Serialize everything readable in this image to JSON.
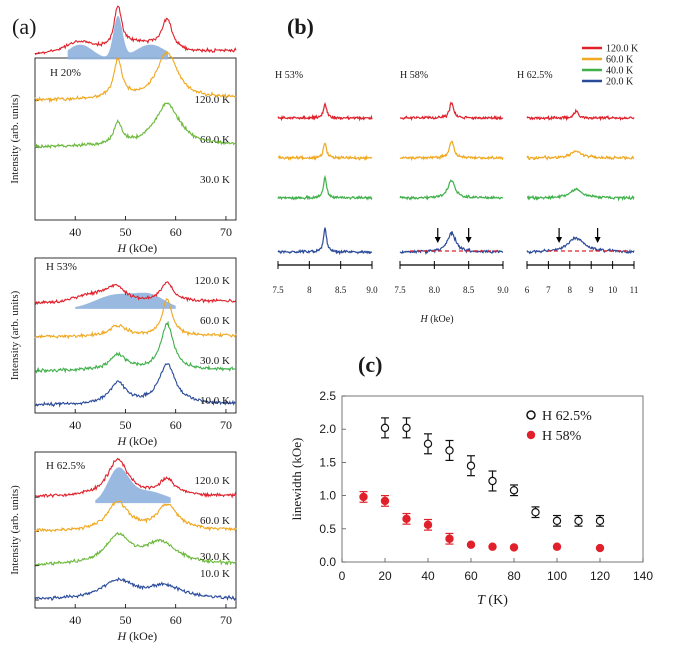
{
  "figure": {
    "panel_a_label": "(a)",
    "panel_b_label": "(b)",
    "panel_c_label": "(c)"
  },
  "colors": {
    "t120": "#e0202a",
    "t60": "#f0a820",
    "t40": "#3fb04a",
    "t30": "#6ab83a",
    "t20": "#2a4a9a",
    "t10": "#2a4a9a",
    "fill": "#8fb1dd",
    "dash": "#e0202a",
    "open_marker": "#111111",
    "filled_marker": "#e0202a"
  },
  "chart_data": [
    {
      "type": "line",
      "panel": "a-top",
      "title": "H 20%",
      "ylabel": "Intensity (arb. units)",
      "xlabel_var": "H",
      "xlabel_unit": "(kOe)",
      "xlim": [
        32,
        72
      ],
      "xticks": [
        40,
        50,
        60,
        70
      ],
      "series": [
        {
          "name": "120.0 K",
          "color_key": "t120",
          "offset": 3,
          "base": 0.3,
          "peaks": [
            [
              48.5,
              1.0,
              0.9
            ],
            [
              58.3,
              0.7,
              1.2
            ]
          ],
          "bumps": [
            [
              41,
              0.25,
              3
            ],
            [
              53,
              0.2,
              4
            ]
          ]
        },
        {
          "name": "60.0 K",
          "color_key": "t60",
          "offset": 2,
          "base": 0.25,
          "peaks": [
            [
              48.5,
              0.9,
              1.0
            ],
            [
              58.3,
              1.1,
              2.5
            ]
          ],
          "bumps": []
        },
        {
          "name": "30.0 K",
          "color_key": "t30",
          "offset": 1,
          "base": 0.2,
          "peaks": [
            [
              48.5,
              0.5,
              1.0
            ],
            [
              58.3,
              1.0,
              3.0
            ]
          ],
          "bumps": []
        }
      ],
      "fit_shade": {
        "from": 38.5,
        "to": 58.5,
        "peaks": [
          [
            48.5,
            1.0,
            0.9
          ],
          [
            41,
            0.35,
            2.5
          ],
          [
            55,
            0.35,
            3
          ]
        ]
      }
    },
    {
      "type": "line",
      "panel": "a-mid",
      "title": "H 53%",
      "ylabel": "Intensity (arb. units)",
      "xlabel_var": "H",
      "xlabel_unit": "(kOe)",
      "xlim": [
        32,
        72
      ],
      "xticks": [
        40,
        50,
        60,
        70
      ],
      "series": [
        {
          "name": "120.0 K",
          "color_key": "t120",
          "offset": 3,
          "base": 0.25,
          "peaks": [
            [
              48,
              0.5,
              2.5
            ],
            [
              58.3,
              0.6,
              1.5
            ]
          ],
          "bumps": [
            [
              43,
              0.2,
              3
            ]
          ]
        },
        {
          "name": "60.0 K",
          "color_key": "t60",
          "offset": 2,
          "base": 0.2,
          "peaks": [
            [
              48.5,
              0.35,
              2.0
            ],
            [
              58.3,
              1.2,
              1.2
            ]
          ],
          "bumps": []
        },
        {
          "name": "30.0 K",
          "color_key": "t40",
          "offset": 1,
          "base": 0.2,
          "peaks": [
            [
              48.5,
              0.5,
              2.0
            ],
            [
              58.3,
              1.5,
              1.5
            ]
          ],
          "bumps": []
        },
        {
          "name": "10.0 K",
          "color_key": "t10",
          "offset": 0,
          "base": 0.15,
          "peaks": [
            [
              48.5,
              0.7,
              2.0
            ],
            [
              58.3,
              1.3,
              2.0
            ]
          ],
          "bumps": []
        }
      ],
      "fit_shade": {
        "from": 40,
        "to": 60,
        "peaks": [
          [
            48,
            0.45,
            4
          ],
          [
            55,
            0.4,
            3
          ]
        ]
      }
    },
    {
      "type": "line",
      "panel": "a-bot",
      "title": "H 62.5%",
      "ylabel": "Intensity (arb. units)",
      "xlabel_var": "H",
      "xlabel_unit": "(kOe)",
      "xlim": [
        32,
        72
      ],
      "xticks": [
        40,
        50,
        60,
        70
      ],
      "series": [
        {
          "name": "120.0 K",
          "color_key": "t120",
          "offset": 3,
          "base": 0.2,
          "peaks": [
            [
              48.5,
              1.2,
              2.5
            ],
            [
              58.3,
              0.5,
              2.0
            ]
          ],
          "bumps": []
        },
        {
          "name": "60.0 K",
          "color_key": "t60",
          "offset": 2,
          "base": 0.2,
          "peaks": [
            [
              48.5,
              0.9,
              2.5
            ],
            [
              58.3,
              0.8,
              2.5
            ]
          ],
          "bumps": []
        },
        {
          "name": "30.0 K",
          "color_key": "t30",
          "offset": 1,
          "base": 0.15,
          "peaks": [
            [
              48.5,
              0.9,
              3.0
            ],
            [
              57,
              0.7,
              4.0
            ]
          ],
          "bumps": []
        },
        {
          "name": "10.0 K",
          "color_key": "t10",
          "offset": 0,
          "base": 0.1,
          "peaks": [
            [
              48.5,
              0.6,
              4.0
            ],
            [
              58,
              0.4,
              4.0
            ]
          ],
          "bumps": []
        }
      ],
      "fit_shade": {
        "from": 44,
        "to": 59,
        "peaks": [
          [
            48.5,
            1.0,
            2.0
          ],
          [
            54,
            0.4,
            4
          ]
        ]
      }
    },
    {
      "type": "line",
      "panel": "b-53",
      "title": "H 53%",
      "xlim": [
        7.5,
        9.0
      ],
      "xticks": [
        7.5,
        8.0,
        8.5,
        9.0
      ],
      "xticklabels": [
        "7.5",
        "8",
        "8.5",
        "9.0"
      ],
      "series": [
        {
          "name": "120.0 K",
          "color_key": "t120",
          "offset": 3,
          "peak": [
            8.25,
            1.0,
            0.03
          ]
        },
        {
          "name": "60.0 K",
          "color_key": "t60",
          "offset": 2,
          "peak": [
            8.25,
            1.1,
            0.03
          ]
        },
        {
          "name": "40.0 K",
          "color_key": "t40",
          "offset": 1,
          "peak": [
            8.25,
            1.5,
            0.03
          ]
        },
        {
          "name": "20.0 K",
          "color_key": "t20",
          "offset": 0,
          "peak": [
            8.25,
            1.7,
            0.03
          ]
        }
      ]
    },
    {
      "type": "line",
      "panel": "b-58",
      "title": "H 58%",
      "xlim": [
        7.5,
        9.0
      ],
      "xticks": [
        7.5,
        8.0,
        8.5,
        9.0
      ],
      "xticklabels": [
        "7.5",
        "8.0",
        "8.5",
        "9.0"
      ],
      "arrows": [
        8.05,
        8.5
      ],
      "series": [
        {
          "name": "120.0 K",
          "color_key": "t120",
          "offset": 3,
          "peak": [
            8.25,
            1.1,
            0.035
          ]
        },
        {
          "name": "60.0 K",
          "color_key": "t60",
          "offset": 2,
          "peak": [
            8.25,
            1.2,
            0.04
          ]
        },
        {
          "name": "40.0 K",
          "color_key": "t40",
          "offset": 1,
          "peak": [
            8.25,
            1.3,
            0.06
          ]
        },
        {
          "name": "20.0 K",
          "color_key": "t20",
          "offset": 0,
          "peak": [
            8.25,
            1.4,
            0.07
          ]
        }
      ]
    },
    {
      "type": "line",
      "panel": "b-62",
      "title": "H 62.5%",
      "xlim": [
        6,
        11
      ],
      "xticks": [
        6,
        7,
        8,
        9,
        10,
        11
      ],
      "xticklabels": [
        "6",
        "7",
        "8",
        "9",
        "10",
        "11"
      ],
      "arrows": [
        7.5,
        9.3
      ],
      "series": [
        {
          "name": "120.0 K",
          "color_key": "t120",
          "offset": 3,
          "peak": [
            8.3,
            0.5,
            0.12
          ]
        },
        {
          "name": "60.0 K",
          "color_key": "t60",
          "offset": 2,
          "peak": [
            8.3,
            0.5,
            0.3
          ]
        },
        {
          "name": "40.0 K",
          "color_key": "t40",
          "offset": 1,
          "peak": [
            8.3,
            0.6,
            0.35
          ]
        },
        {
          "name": "20.0 K",
          "color_key": "t20",
          "offset": 0,
          "peak": [
            8.3,
            1.0,
            0.45
          ]
        }
      ]
    },
    {
      "type": "scatter",
      "panel": "c",
      "xlabel_var": "T",
      "xlabel_unit": "(K)",
      "ylabel": "linewidth (kOe)",
      "xlim": [
        0,
        140
      ],
      "ylim": [
        0,
        2.5
      ],
      "xticks": [
        0,
        20,
        40,
        60,
        80,
        100,
        120,
        140
      ],
      "yticks": [
        0.0,
        0.5,
        1.0,
        1.5,
        2.0,
        2.5
      ],
      "ytick_labels": [
        "0.0",
        "0.5",
        "1.0",
        "1.5",
        "2.0",
        "2.5"
      ],
      "series": [
        {
          "name": "H 62.5%",
          "marker": "open",
          "color_key": "open_marker",
          "x": [
            20,
            30,
            40,
            50,
            60,
            70,
            80,
            90,
            100,
            110,
            120
          ],
          "y": [
            2.02,
            2.02,
            1.78,
            1.68,
            1.45,
            1.22,
            1.08,
            0.75,
            0.62,
            0.62,
            0.62
          ],
          "err": [
            0.15,
            0.15,
            0.15,
            0.15,
            0.15,
            0.15,
            0.08,
            0.08,
            0.08,
            0.08,
            0.08
          ]
        },
        {
          "name": "H 58%",
          "marker": "filled",
          "color_key": "filled_marker",
          "x": [
            10,
            20,
            30,
            40,
            50,
            60,
            70,
            80,
            100,
            120
          ],
          "y": [
            0.98,
            0.92,
            0.65,
            0.56,
            0.35,
            0.26,
            0.23,
            0.22,
            0.23,
            0.21
          ],
          "err": [
            0.08,
            0.08,
            0.08,
            0.08,
            0.08,
            0.0,
            0.0,
            0.0,
            0.0,
            0.0
          ]
        }
      ]
    }
  ],
  "legend_b": [
    {
      "label": "120.0 K",
      "color_key": "t120"
    },
    {
      "label": "60.0 K",
      "color_key": "t60"
    },
    {
      "label": "40.0 K",
      "color_key": "t40"
    },
    {
      "label": "20.0 K",
      "color_key": "t20"
    }
  ]
}
